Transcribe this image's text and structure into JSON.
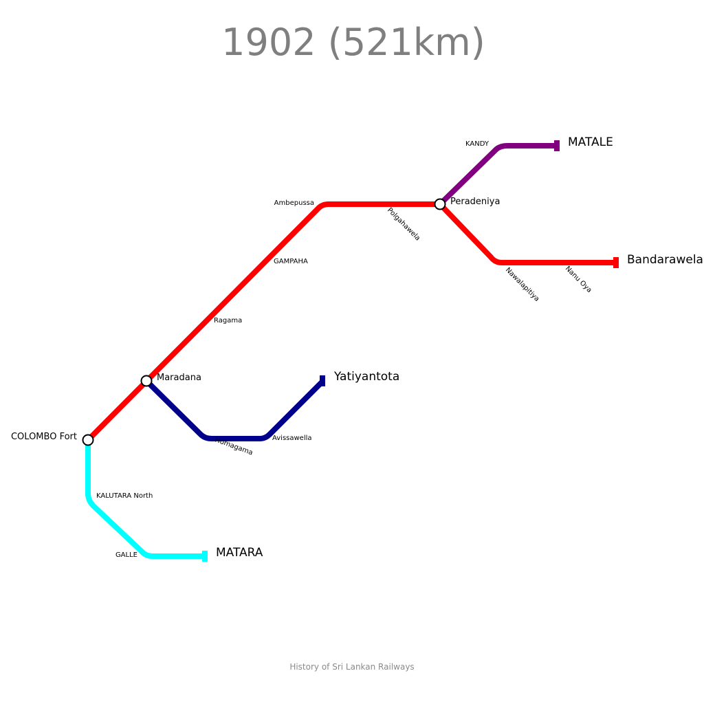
{
  "title": "1902 (521km)",
  "footer": "History of Sri Lankan Railways",
  "lines": {
    "main": {
      "color": "#ff0000"
    },
    "matale": {
      "color": "#800080"
    },
    "kelani_valley": {
      "color": "#00008b"
    },
    "coast": {
      "color": "#00ffff"
    }
  },
  "stations": {
    "colombo_fort": "COLOMBO Fort",
    "maradana": "Maradana",
    "ragama": "Ragama",
    "gampaha": "GAMPAHA",
    "ambepussa": "Ambepussa",
    "polgahawela": "Polgahawela",
    "peradeniya": "Peradeniya",
    "kandy": "KANDY",
    "matale": "MATALE",
    "nawalapitiya": "Nawalapitiya",
    "nanu_oya": "Nanu Oya",
    "bandarawela": "Bandarawela",
    "homagama": "Homagama",
    "avissawella": "Avissawella",
    "yatiyantota": "Yatiyantota",
    "kalutara_north": "KALUTARA North",
    "galle": "GALLE",
    "matara": "MATARA"
  }
}
